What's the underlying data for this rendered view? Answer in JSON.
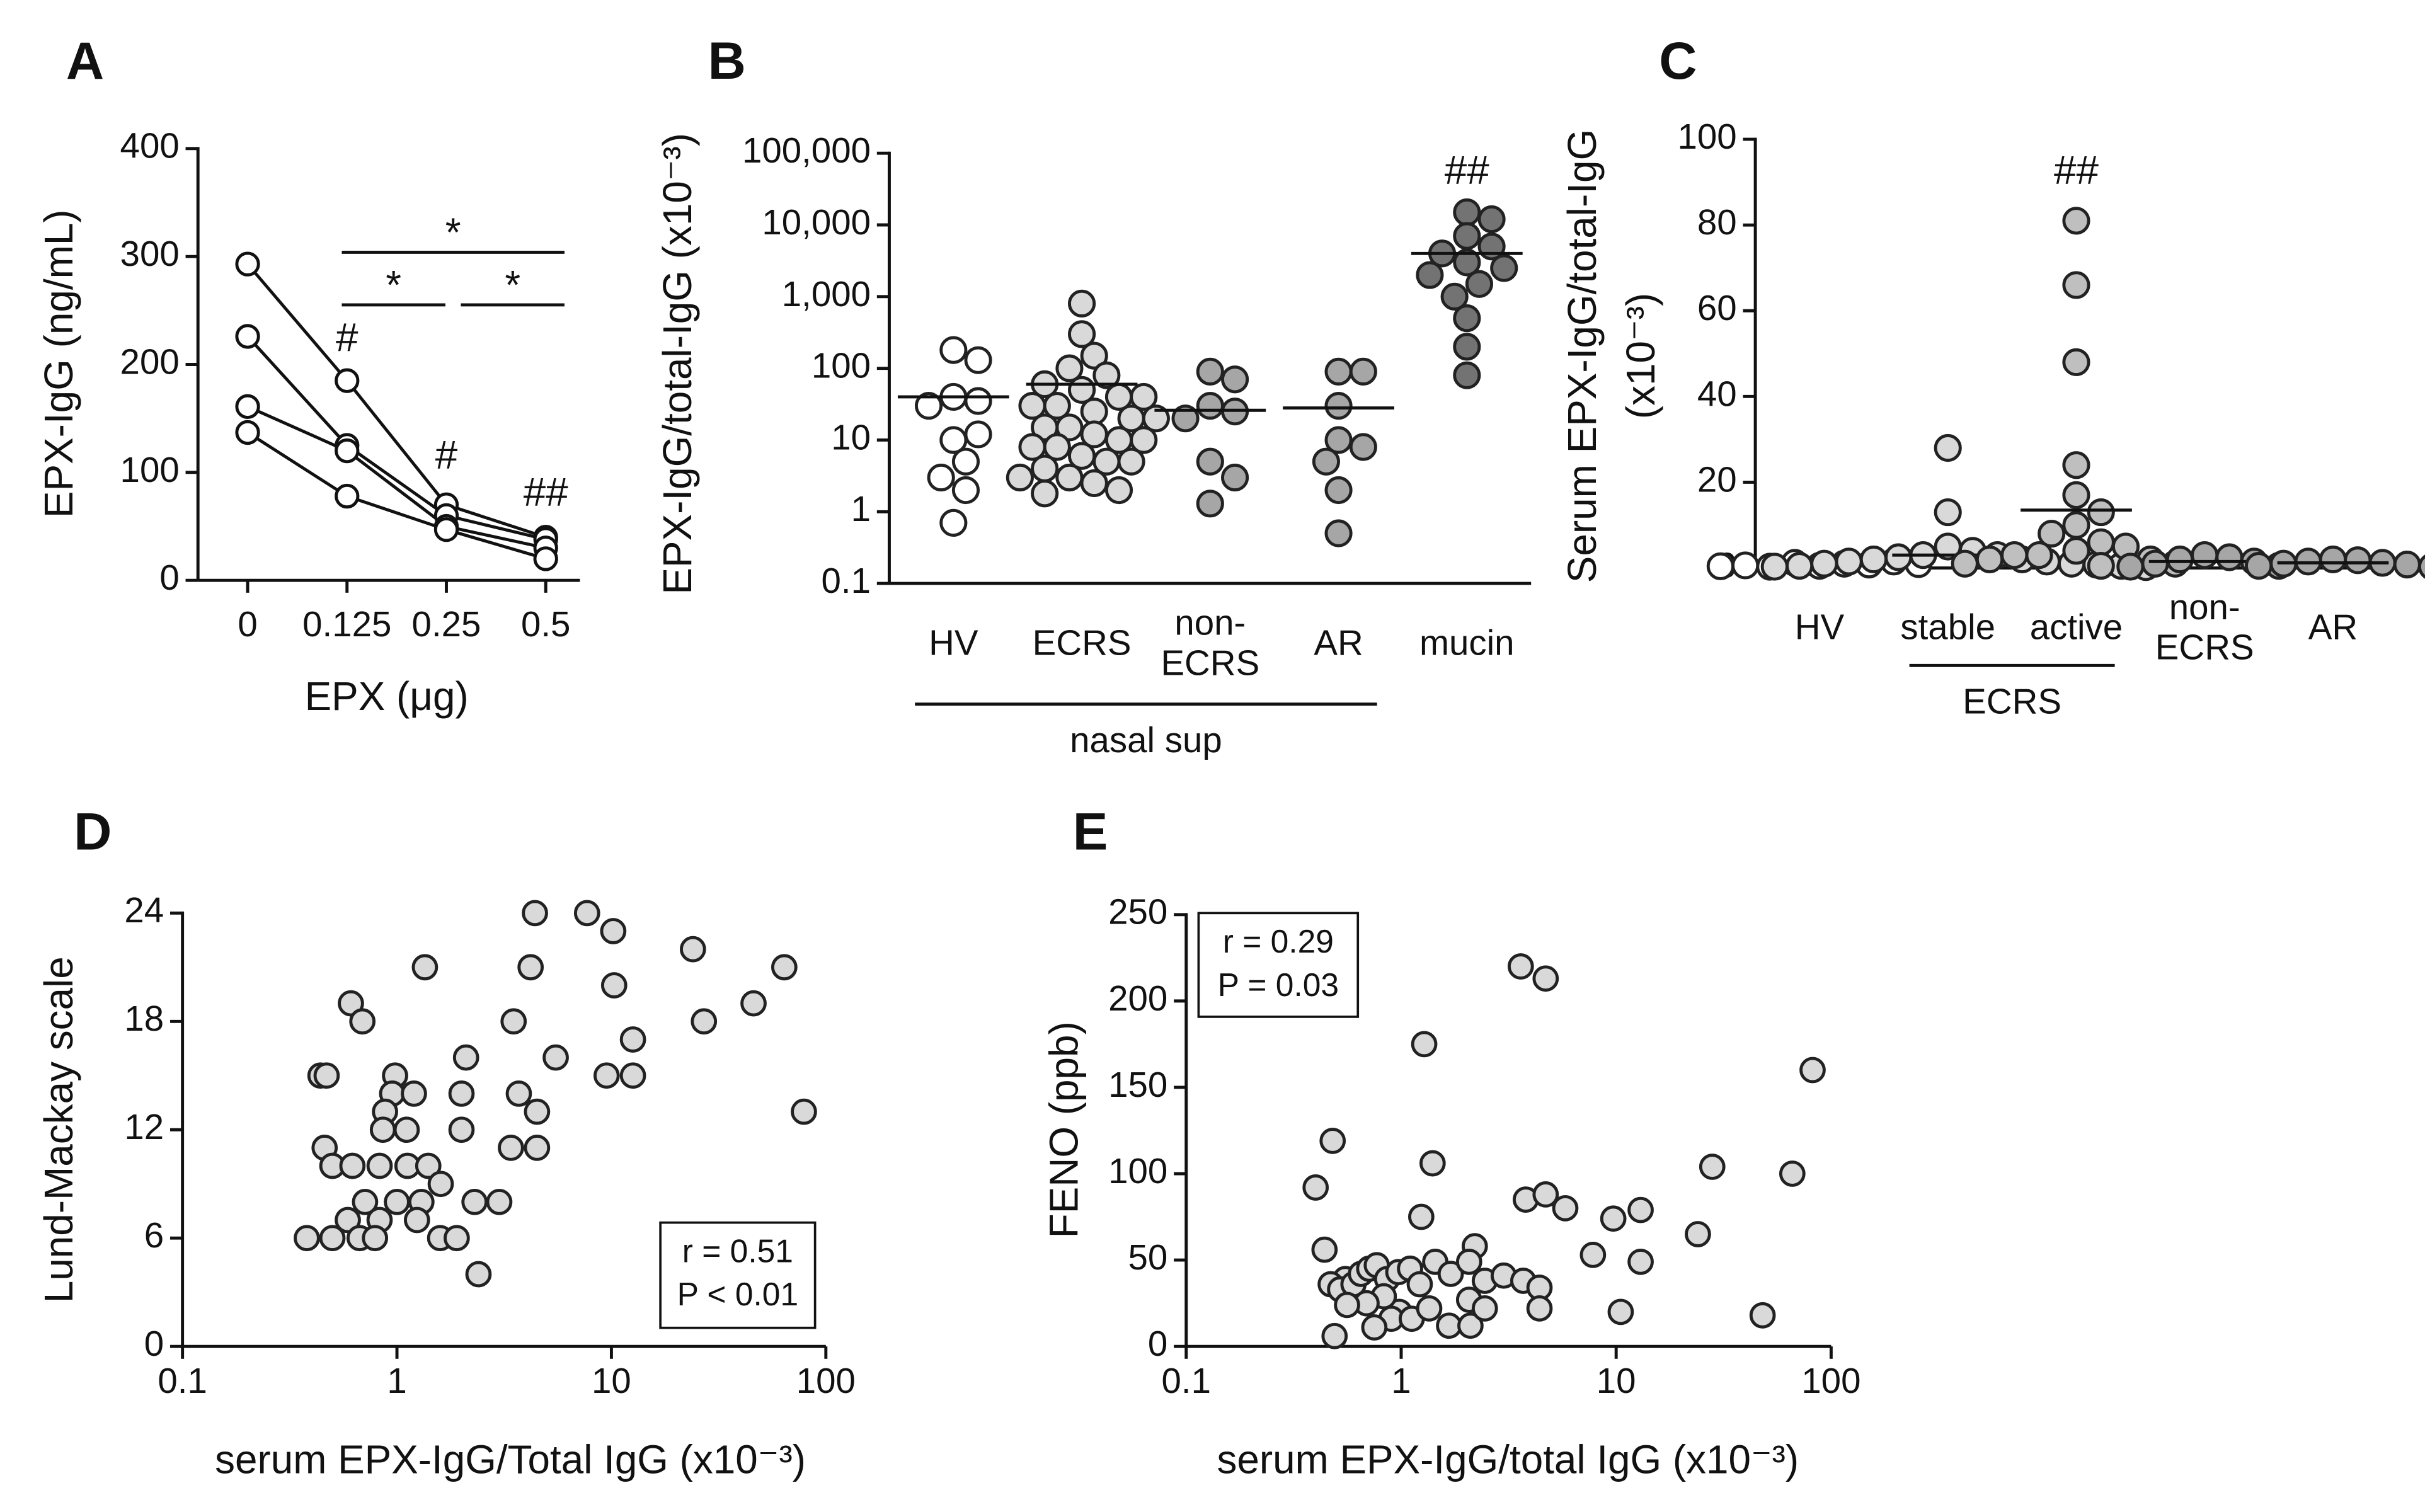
{
  "chart_data": [
    {
      "type": "line",
      "label": "A",
      "xlabel": "EPX (μg)",
      "ylabel": "EPX-IgG (ng/mL)",
      "categories": [
        "0",
        "0.125",
        "0.25",
        "0.5"
      ],
      "series": [
        {
          "values": [
            293,
            185,
            70,
            40
          ]
        },
        {
          "values": [
            226,
            125,
            60,
            38
          ]
        },
        {
          "values": [
            161,
            120,
            50,
            30
          ]
        },
        {
          "values": [
            137,
            78,
            47,
            20
          ]
        }
      ],
      "color": "#ffffff",
      "ylim": [
        0,
        400
      ],
      "yticks": [
        0,
        100,
        200,
        300,
        400
      ],
      "annotations": [
        "#",
        "#",
        "##"
      ],
      "significance": [
        "*",
        "*",
        "*"
      ]
    },
    {
      "type": "dot",
      "label": "B",
      "ylabel": "EPX-IgG/total-IgG (x10⁻³)",
      "ylog": true,
      "categories": [
        "HV",
        "ECRS",
        "non-\nECRS",
        "AR",
        "mucin"
      ],
      "group_label": "nasal sup",
      "colors": [
        "#ffffff",
        "#d9d9d9",
        "#a6a6a6",
        "#a6a6a6",
        "#737373"
      ],
      "values": [
        [
          180,
          130,
          40,
          35,
          30,
          10,
          12,
          5,
          3,
          2,
          0.7
        ],
        [
          800,
          300,
          150,
          100,
          80,
          60,
          50,
          40,
          40,
          30,
          30,
          25,
          20,
          20,
          15,
          15,
          12,
          10,
          10,
          8,
          8,
          6,
          5,
          5,
          4,
          3,
          3,
          2.5,
          2,
          1.8
        ],
        [
          90,
          70,
          30,
          25,
          20,
          5,
          3,
          1.3
        ],
        [
          90,
          90,
          30,
          10,
          8,
          5,
          2,
          0.5
        ],
        [
          15000,
          12000,
          7000,
          5000,
          4000,
          3000,
          2500,
          2000,
          1500,
          1000,
          500,
          200,
          80
        ]
      ],
      "means": [
        40,
        60,
        26,
        28,
        4000
      ],
      "ylim": [
        0.1,
        100000
      ],
      "yticks": [
        0.1,
        1,
        10,
        100,
        {
          "value": 1000,
          "label": "1,000"
        },
        {
          "value": 10000,
          "label": "10,000"
        },
        {
          "value": 100000,
          "label": "100,000"
        }
      ],
      "annotations": [
        "##"
      ]
    },
    {
      "type": "dot",
      "label": "C",
      "ylabel": [
        "Serum EPX-IgG/total-IgG",
        "(x10⁻³)"
      ],
      "categories": [
        "HV",
        "stable",
        "active",
        "non-\nECRS",
        "AR"
      ],
      "group_label": "ECRS",
      "colors": [
        "#ffffff",
        "#d9d9d9",
        "#bfbfbf",
        "#a6a6a6",
        "#a6a6a6"
      ],
      "values": [
        [
          0.5,
          1,
          1.2,
          0.8,
          0.3,
          1.5,
          0.6,
          0.9,
          0.4
        ],
        [
          28,
          13,
          5,
          4,
          3,
          3,
          2.5,
          2,
          2,
          1.5,
          1.5,
          1,
          1,
          0.8,
          0.5,
          0.5,
          0.3,
          0.2
        ],
        [
          81,
          66,
          48,
          24,
          17,
          13,
          10,
          8,
          6,
          5,
          4,
          3,
          3,
          2,
          2,
          1,
          1,
          0.5
        ],
        [
          3,
          2.5,
          2,
          1.5,
          1,
          0.5,
          0.3
        ],
        [
          2,
          1.8,
          1.5,
          1.2,
          1,
          0.8,
          0.5,
          0.3
        ]
      ],
      "means": [
        0.8,
        3,
        13.5,
        1.5,
        1.2
      ],
      "ylim": [
        0,
        100
      ],
      "yticks": [
        0,
        20,
        40,
        60,
        80,
        100
      ],
      "annotations": [
        "##"
      ]
    },
    {
      "type": "scatter",
      "label": "D",
      "xlabel": "serum EPX-IgG/Total IgG (x10⁻³)",
      "ylabel": "Lund-Mackay scale",
      "xlog": true,
      "xlim": [
        0.1,
        100
      ],
      "xticks": [
        0.1,
        1,
        10,
        100
      ],
      "ylim": [
        0,
        24
      ],
      "yticks": [
        0,
        6,
        12,
        18,
        24
      ],
      "color": "#d9d9d9",
      "stats": [
        "r = 0.51",
        "P < 0.01"
      ],
      "x": [
        4.4,
        7.7,
        10.2,
        24,
        64,
        1.35,
        4.2,
        10.3,
        46,
        0.61,
        0.69,
        3.5,
        27,
        12.6,
        5.5,
        2.1,
        12.6,
        9.5,
        0.44,
        0.47,
        0.98,
        4.5,
        79,
        0.95,
        1.2,
        2.0,
        3.7,
        0.88,
        1.11,
        0.86,
        2.0,
        3.4,
        4.5,
        0.46,
        0.5,
        0.62,
        0.83,
        1.12,
        1.4,
        1.6,
        1.3,
        1.0,
        0.71,
        2.3,
        3.0,
        0.59,
        0.83,
        1.24,
        0.38,
        0.5,
        0.67,
        0.79,
        1.59,
        1.9,
        2.4
      ],
      "y": [
        24,
        24,
        23,
        22,
        21,
        21,
        21,
        20,
        19,
        19,
        18,
        18,
        18,
        17,
        16,
        16,
        15,
        15,
        15,
        15,
        15,
        13,
        13,
        14,
        14,
        14,
        14,
        13,
        12,
        12,
        12,
        11,
        11,
        11,
        10,
        10,
        10,
        10,
        10,
        9,
        8,
        8,
        8,
        8,
        8,
        7,
        7,
        7,
        6,
        6,
        6,
        6,
        6,
        6,
        4
      ]
    },
    {
      "type": "scatter",
      "label": "E",
      "xlabel": "serum EPX-IgG/total IgG (x10⁻³)",
      "ylabel": "FENO (ppb)",
      "xlog": true,
      "xlim": [
        0.1,
        100
      ],
      "xticks": [
        0.1,
        1,
        10,
        100
      ],
      "ylim": [
        0,
        250
      ],
      "yticks": [
        0,
        50,
        100,
        150,
        200,
        250
      ],
      "color": "#d9d9d9",
      "stats": [
        "r = 0.29",
        "P = 0.03"
      ],
      "x": [
        3.6,
        4.7,
        1.28,
        82,
        1.4,
        28,
        0.48,
        0.4,
        66,
        3.8,
        4.7,
        5.8,
        1.24,
        9.7,
        13,
        24,
        7.8,
        0.44,
        2.2,
        13,
        0.55,
        0.47,
        0.52,
        0.6,
        0.65,
        0.71,
        0.77,
        0.86,
        0.97,
        1.1,
        1.22,
        1.44,
        1.7,
        2.07,
        2.45,
        3.0,
        3.7,
        4.4,
        2.07,
        0.98,
        0.9,
        1.12,
        1.35,
        0.75,
        1.67,
        2.1,
        2.45,
        4.4,
        0.49,
        10.5,
        48,
        0.83,
        0.69,
        0.56
      ],
      "y": [
        220,
        213,
        175,
        160,
        106,
        104,
        119,
        92,
        100,
        85,
        88,
        80,
        75,
        74,
        79,
        65,
        53,
        56,
        58,
        49,
        39,
        36,
        33,
        36,
        42,
        45,
        47,
        39,
        43,
        45,
        36,
        49,
        42,
        49,
        38,
        41,
        38,
        34,
        27,
        20,
        16,
        16,
        22,
        11,
        12,
        12,
        22,
        22,
        6,
        20,
        18,
        29,
        25,
        24
      ]
    }
  ]
}
